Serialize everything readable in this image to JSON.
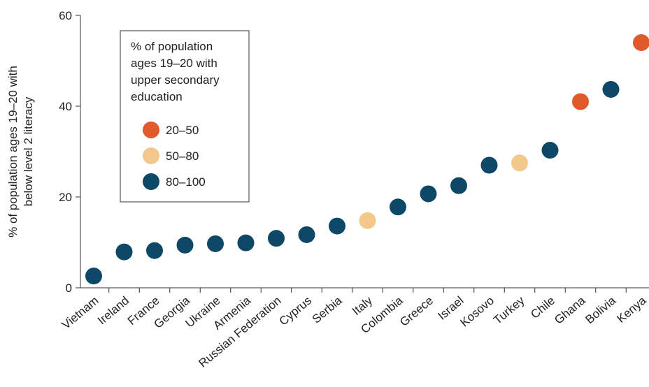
{
  "chart_data": {
    "type": "scatter",
    "ylabel": "% of population ages 19–20 with below level 2 literacy",
    "ylabel_lines": [
      "% of population ages 19–20 with",
      "below level 2 literacy"
    ],
    "ylim": [
      0,
      60
    ],
    "yticks": [
      0,
      20,
      40,
      60
    ],
    "grid": false,
    "legend": {
      "placement": "top-left",
      "title": "% of population ages 19–20 with upper secondary education",
      "title_lines": [
        "% of population",
        "ages 19–20 with",
        "upper secondary",
        "education"
      ],
      "entries": [
        {
          "label": "20–50",
          "color": "#e05a2b"
        },
        {
          "label": "50–80",
          "color": "#f2c88c"
        },
        {
          "label": "80–100",
          "color": "#0d4866"
        }
      ]
    },
    "categories": [
      "Vietnam",
      "Ireland",
      "France",
      "Georgia",
      "Ukraine",
      "Armenia",
      "Russian Federation",
      "Cyprus",
      "Serbia",
      "Italy",
      "Colombia",
      "Greece",
      "Israel",
      "Kosovo",
      "Turkey",
      "Chile",
      "Ghana",
      "Bolivia",
      "Kenya"
    ],
    "values": [
      2.6,
      7.9,
      8.2,
      9.4,
      9.7,
      9.9,
      10.9,
      11.7,
      13.6,
      14.8,
      17.8,
      20.7,
      22.5,
      27.0,
      27.5,
      30.3,
      41.0,
      43.7,
      54.0
    ],
    "groups": [
      "80–100",
      "80–100",
      "80–100",
      "80–100",
      "80–100",
      "80–100",
      "80–100",
      "80–100",
      "80–100",
      "50–80",
      "80–100",
      "80–100",
      "80–100",
      "80–100",
      "50–80",
      "80–100",
      "20–50",
      "80–100",
      "20–50"
    ]
  }
}
